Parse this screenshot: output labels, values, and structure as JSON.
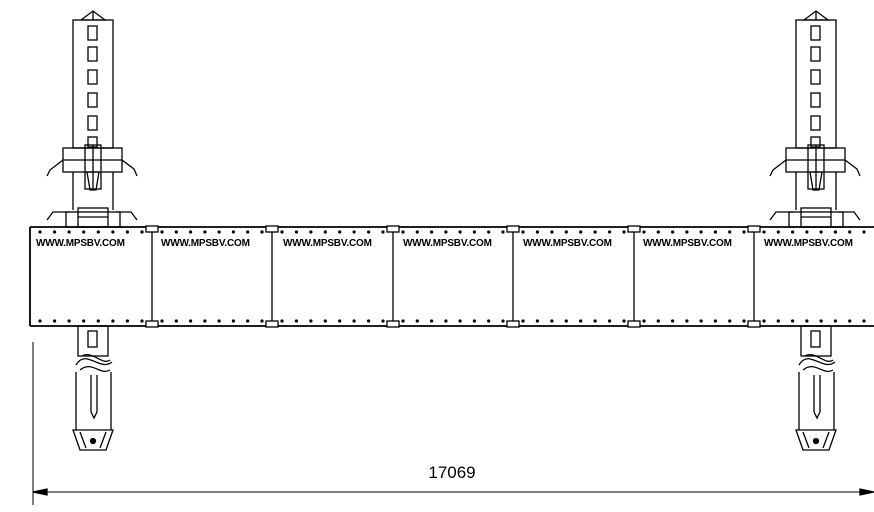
{
  "drawing": {
    "segment_labels": [
      "WWW.MPSBV.COM",
      "WWW.MPSBV.COM",
      "WWW.MPSBV.COM",
      "WWW.MPSBV.COM",
      "WWW.MPSBV.COM",
      "WWW.MPSBV.COM",
      "WWW.MPSBV.COM"
    ],
    "overall_dimension": "17069",
    "line_color": "#000000"
  }
}
